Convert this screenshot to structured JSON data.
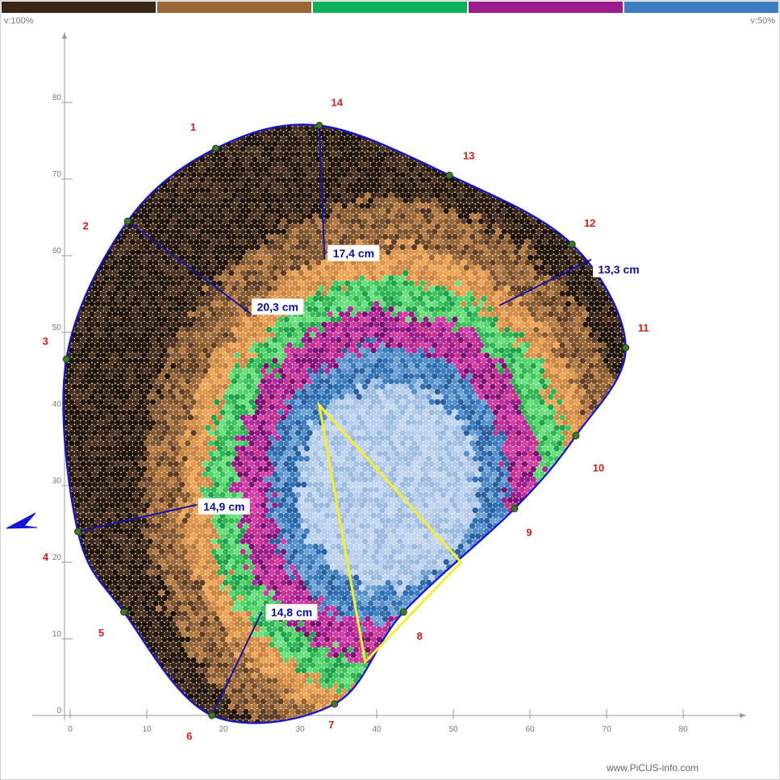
{
  "legend": {
    "colors": [
      "#3b2616",
      "#9b6635",
      "#0db15c",
      "#9b1d8c",
      "#3d7ec0"
    ]
  },
  "scale": {
    "left": "v:100%",
    "right": "v:50%"
  },
  "credit": "www.PiCUS-info.com",
  "axes": {
    "x_ticks": [
      "0",
      "10",
      "20",
      "30",
      "40",
      "50",
      "60",
      "70",
      "80"
    ],
    "y_ticks": [
      "0",
      "10",
      "20",
      "30",
      "40",
      "50",
      "60",
      "70",
      "80"
    ]
  },
  "measurements": [
    {
      "label": "17,4 cm",
      "from": [
        32.5,
        77
      ],
      "to": [
        33.2,
        59.5
      ]
    },
    {
      "label": "20,3 cm",
      "from": [
        7.5,
        64.5
      ],
      "to": [
        23.5,
        52.5
      ]
    },
    {
      "label": "13,3 cm",
      "from": [
        68,
        59.5
      ],
      "to": [
        56,
        53.5
      ]
    },
    {
      "label": "14,9 cm",
      "from": [
        1,
        24
      ],
      "to": [
        16.5,
        27.5
      ]
    },
    {
      "label": "14,8 cm",
      "from": [
        18.5,
        0
      ],
      "to": [
        25,
        13.5
      ]
    }
  ],
  "sensors": [
    {
      "n": "1",
      "x": 19,
      "y": 74
    },
    {
      "n": "2",
      "x": 7.5,
      "y": 64.5
    },
    {
      "n": "3",
      "x": -0.5,
      "y": 46.5
    },
    {
      "n": "4",
      "x": 1,
      "y": 24
    },
    {
      "n": "5",
      "x": 7,
      "y": 13.5
    },
    {
      "n": "6",
      "x": 18.5,
      "y": 0
    },
    {
      "n": "7",
      "x": 34.5,
      "y": 1.5
    },
    {
      "n": "8",
      "x": 43.5,
      "y": 13.5
    },
    {
      "n": "9",
      "x": 58,
      "y": 27
    },
    {
      "n": "10",
      "x": 66,
      "y": 36.5
    },
    {
      "n": "11",
      "x": 72.5,
      "y": 48
    },
    {
      "n": "12",
      "x": 65.5,
      "y": 61.5
    },
    {
      "n": "13",
      "x": 49.5,
      "y": 70.5
    },
    {
      "n": "14",
      "x": 32.5,
      "y": 77
    }
  ],
  "pointer_label": "4",
  "yellow_triangle": [
    [
      32.5,
      40.5
    ],
    [
      38.5,
      7
    ],
    [
      51,
      20
    ]
  ]
}
